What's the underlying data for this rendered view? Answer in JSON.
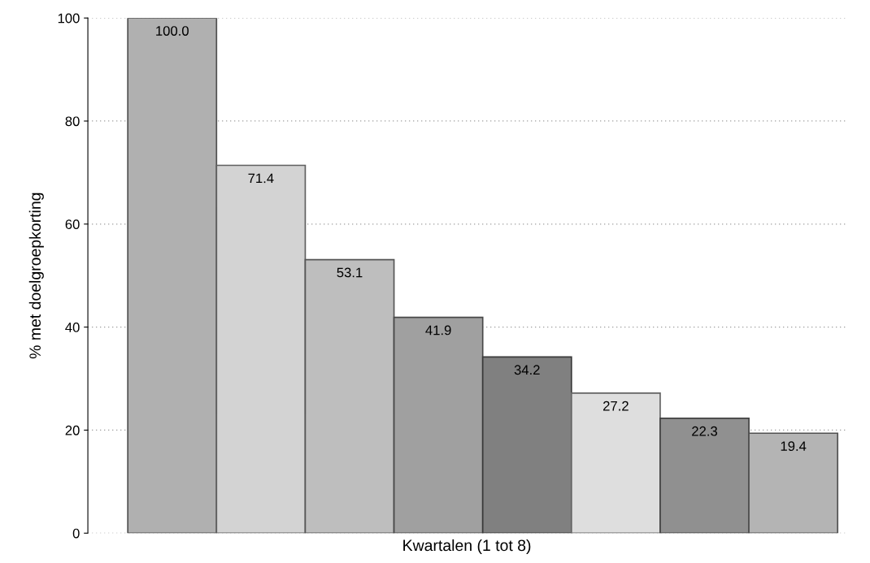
{
  "chart_data": {
    "type": "bar",
    "xlabel": "Kwartalen (1 tot 8)",
    "ylabel": "% met doelgroepkorting",
    "categories": [
      null,
      null,
      null,
      null,
      null,
      null,
      null,
      null
    ],
    "values": [
      100.0,
      71.4,
      53.1,
      41.9,
      34.2,
      27.2,
      22.3,
      19.4
    ],
    "colors": [
      "#b0b0b0",
      "#d3d3d3",
      "#bebebe",
      "#a0a0a0",
      "#808080",
      "#dedede",
      "#909090",
      "#b4b4b4"
    ],
    "ylim": [
      0,
      100
    ],
    "yticks": [
      0,
      20,
      40,
      60,
      80,
      100
    ],
    "value_labels": [
      "100.0",
      "71.4",
      "53.1",
      "41.9",
      "34.2",
      "27.2",
      "22.3",
      "19.4"
    ],
    "grid": "y",
    "legend": false
  }
}
